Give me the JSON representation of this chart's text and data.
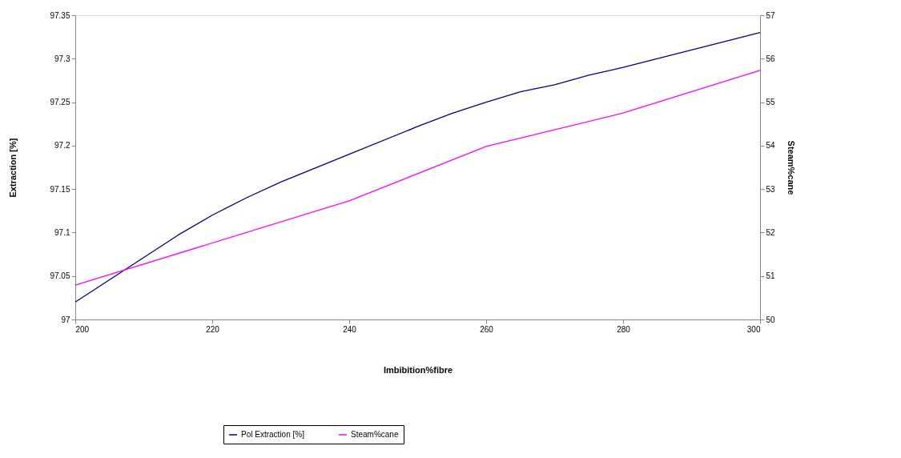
{
  "chart_data": {
    "type": "line",
    "xlabel": "Imbibition%fibre",
    "ylabel": "Extraction [%]",
    "y2label": "Steam%cane",
    "xlim": [
      200,
      300
    ],
    "xticks": [
      200,
      220,
      240,
      260,
      280,
      300
    ],
    "ylim": [
      97,
      97.35
    ],
    "yticks": [
      97,
      97.05,
      97.1,
      97.15,
      97.2,
      97.25,
      97.3,
      97.35
    ],
    "y2lim": [
      50,
      57
    ],
    "y2ticks": [
      50,
      51,
      52,
      53,
      54,
      55,
      56,
      57
    ],
    "grid": false,
    "legend": "bottom",
    "marker": "none",
    "line_style": "solid",
    "series": [
      {
        "name": "Pol Extraction [%]",
        "color": "#000080",
        "x": [
          200,
          215,
          220,
          225,
          230,
          240,
          250,
          255,
          260,
          265,
          270,
          275,
          280,
          300
        ],
        "values": [
          97.02,
          97.097,
          97.12,
          97.14,
          97.158,
          97.19,
          97.222,
          97.237,
          97.25,
          97.262,
          97.27,
          97.281,
          97.29,
          97.33
        ]
      },
      {
        "name": "Steam%cane",
        "color": "#ff00ff",
        "axis": "y2",
        "x": [
          200,
          240,
          260,
          280,
          300
        ],
        "values": [
          50.79,
          52.73,
          53.98,
          54.75,
          55.73
        ]
      }
    ]
  }
}
